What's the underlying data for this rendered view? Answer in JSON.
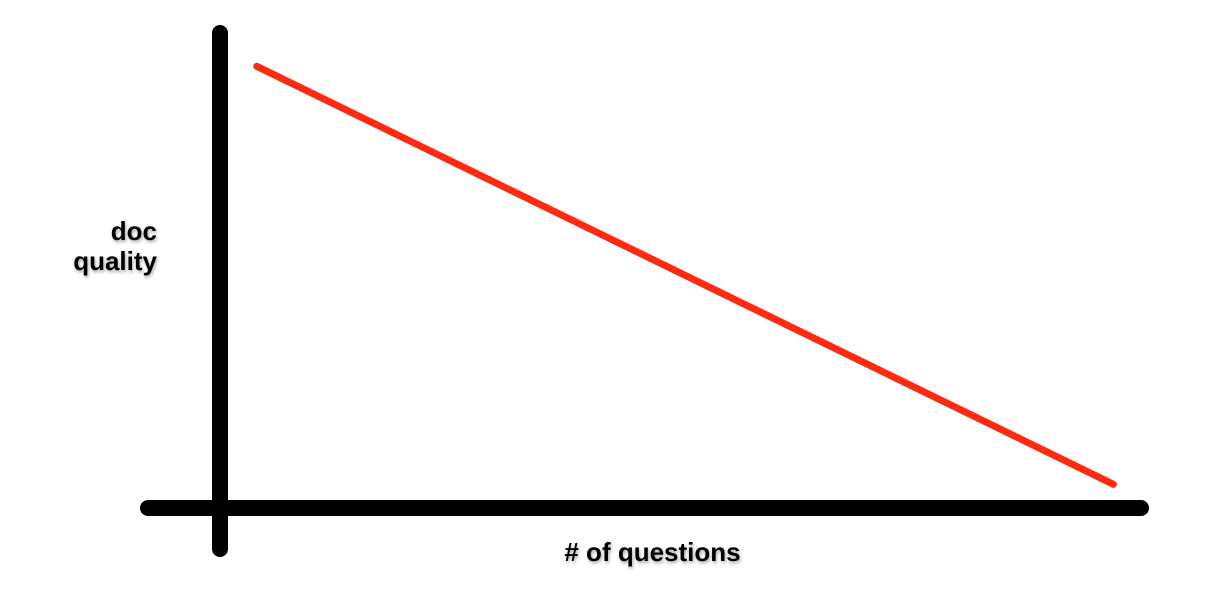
{
  "chart_data": {
    "type": "line",
    "title": "",
    "xlabel": "# of questions",
    "ylabel_lines": [
      "doc",
      "quality"
    ],
    "xlim": [
      0,
      1
    ],
    "ylim": [
      0,
      1
    ],
    "grid": false,
    "legend": "none",
    "series": [
      {
        "color": "#ff2a12",
        "x": [
          0.04,
          0.97
        ],
        "y": [
          0.93,
          0.05
        ]
      }
    ],
    "colors": {
      "axis": "#000000",
      "line": "#ff2a12"
    }
  }
}
